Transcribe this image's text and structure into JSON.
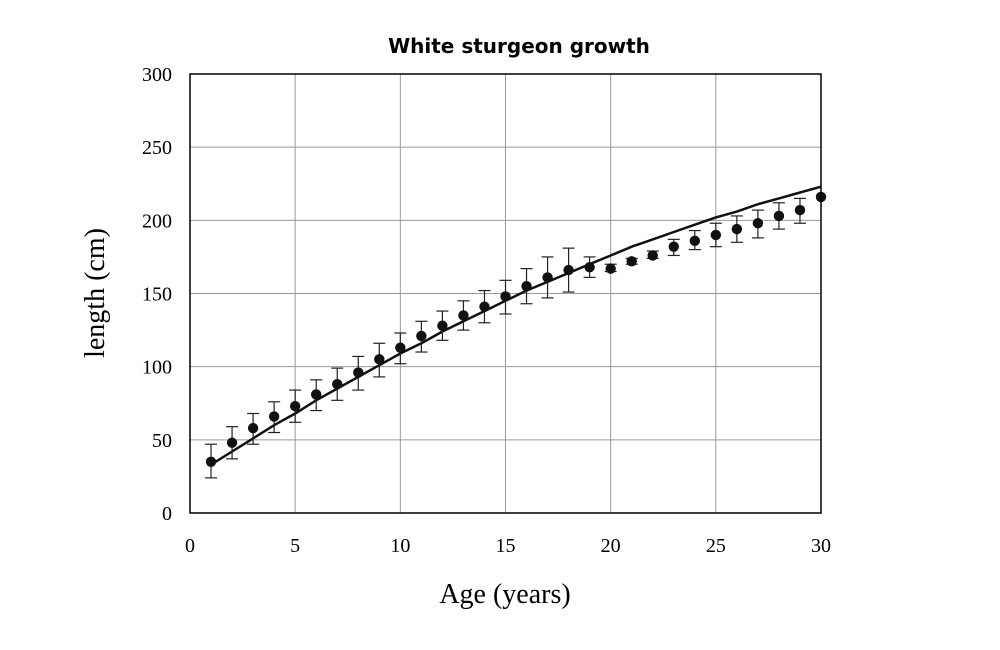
{
  "chart_data": {
    "type": "scatter",
    "title": "White sturgeon growth",
    "xlabel": "Age (years)",
    "ylabel": "length (cm)",
    "xlim": [
      0,
      30
    ],
    "ylim": [
      0,
      300
    ],
    "xticks": [
      "0",
      "5",
      "10",
      "15",
      "20",
      "25",
      "30"
    ],
    "yticks": [
      "0",
      "50",
      "100",
      "150",
      "200",
      "250",
      "300"
    ],
    "xtick_values": [
      0,
      5,
      10,
      15,
      20,
      25,
      30
    ],
    "ytick_values": [
      0,
      50,
      100,
      150,
      200,
      250,
      300
    ],
    "horizontal_grid": [
      50,
      100,
      150,
      200,
      250
    ],
    "vertical_grid": [
      5,
      10,
      15,
      20,
      25
    ],
    "observed": {
      "x": [
        1,
        2,
        3,
        4,
        5,
        6,
        7,
        8,
        9,
        10,
        11,
        12,
        13,
        14,
        15,
        16,
        17,
        18,
        19,
        20,
        21,
        22,
        23,
        24,
        25,
        26,
        27,
        28,
        29,
        30
      ],
      "y": [
        35,
        48,
        58,
        66,
        73,
        81,
        88,
        96,
        105,
        113,
        121,
        128,
        135,
        141,
        148,
        155,
        161,
        166,
        168,
        167,
        172,
        176,
        182,
        186,
        190,
        194,
        198,
        203,
        207,
        216
      ],
      "err_low": [
        24,
        37,
        47,
        55,
        62,
        70,
        77,
        84,
        93,
        102,
        110,
        118,
        125,
        130,
        136,
        143,
        147,
        151,
        161,
        165,
        170,
        174,
        176,
        180,
        182,
        185,
        188,
        194,
        198,
        216
      ],
      "err_high": [
        47,
        59,
        68,
        76,
        84,
        91,
        99,
        107,
        116,
        123,
        131,
        138,
        145,
        152,
        159,
        167,
        175,
        181,
        175,
        170,
        174,
        179,
        187,
        193,
        198,
        203,
        207,
        212,
        215,
        216
      ]
    },
    "fitted_curve": {
      "x": [
        1,
        2,
        3,
        4,
        5,
        6,
        7,
        8,
        9,
        10,
        11,
        12,
        13,
        14,
        15,
        16,
        17,
        18,
        19,
        20,
        21,
        22,
        23,
        24,
        25,
        26,
        27,
        28,
        29,
        30
      ],
      "y": [
        33,
        42,
        51,
        60,
        68,
        77,
        85,
        93,
        101,
        109,
        116,
        124,
        131,
        138,
        145,
        152,
        158,
        164,
        170,
        176,
        182,
        187,
        192,
        197,
        202,
        206,
        211,
        215,
        219,
        223
      ]
    }
  }
}
